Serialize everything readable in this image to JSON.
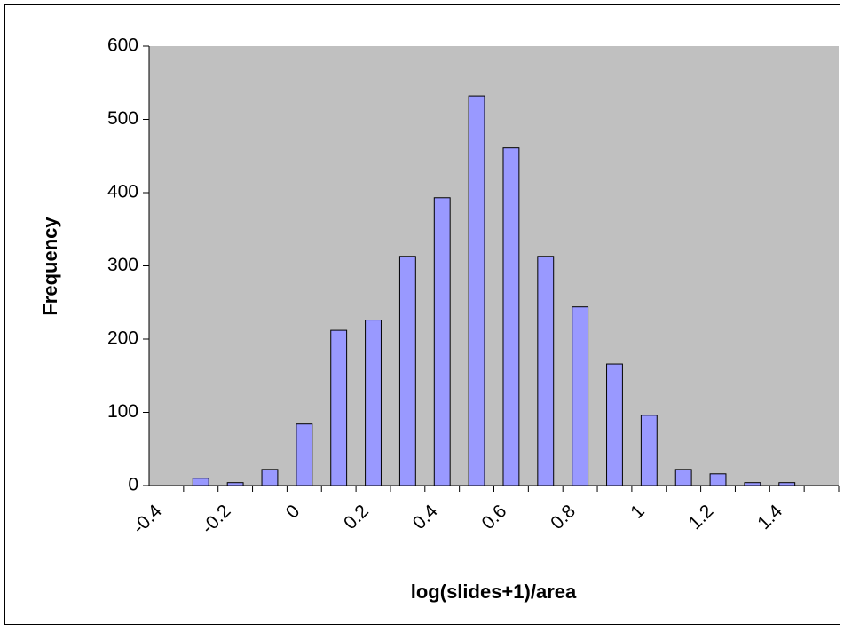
{
  "chart_data": {
    "type": "bar",
    "x_label": "log(slides+1)/area",
    "y_label": "Frequency",
    "categories": [
      "-0.4",
      null,
      "-0.2",
      null,
      "0",
      null,
      "0.2",
      null,
      "0.4",
      null,
      "0.6",
      null,
      "0.8",
      null,
      "1",
      null,
      "1.2",
      null,
      "1.4",
      null
    ],
    "values": [
      0,
      10,
      4,
      22,
      84,
      212,
      226,
      313,
      393,
      532,
      461,
      313,
      244,
      166,
      96,
      22,
      16,
      4,
      4,
      0
    ],
    "color": "#9999ff",
    "plot_background": "#c0c0c0",
    "ylim": [
      0,
      600
    ],
    "yticks": [
      0,
      100,
      200,
      300,
      400,
      500,
      600
    ],
    "grid": false
  }
}
